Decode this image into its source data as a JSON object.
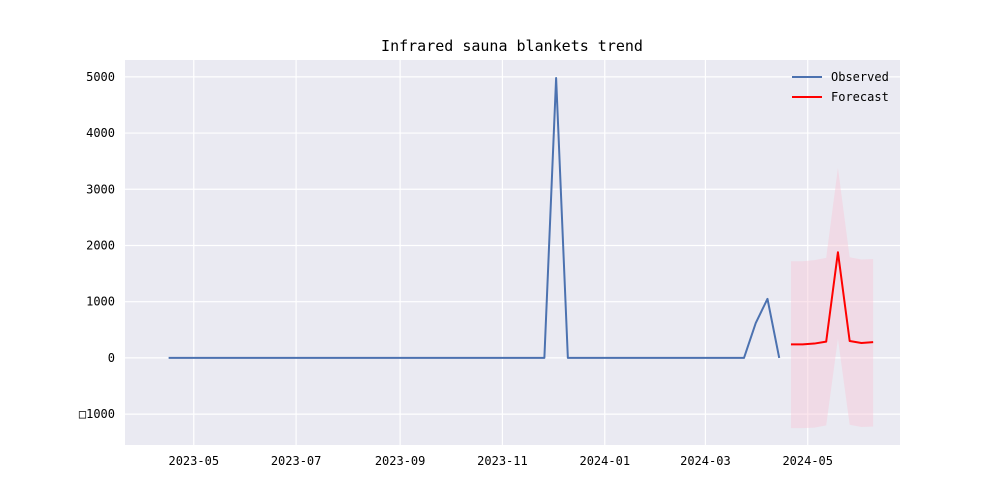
{
  "chart_data": {
    "type": "line",
    "title": "Infrared sauna blankets trend",
    "xlabel": "",
    "ylabel": "",
    "x_domain": [
      "2023-03-21",
      "2024-06-25"
    ],
    "ylim": [
      -1550,
      5300
    ],
    "grid": true,
    "legend_position": "top-right",
    "x_ticks": [
      {
        "date": "2023-05-01",
        "label": "2023-05"
      },
      {
        "date": "2023-07-01",
        "label": "2023-07"
      },
      {
        "date": "2023-09-01",
        "label": "2023-09"
      },
      {
        "date": "2023-11-01",
        "label": "2023-11"
      },
      {
        "date": "2024-01-01",
        "label": "2024-01"
      },
      {
        "date": "2024-03-01",
        "label": "2024-03"
      },
      {
        "date": "2024-05-01",
        "label": "2024-05"
      }
    ],
    "y_ticks": [
      {
        "value": -1000,
        "label": "□1000"
      },
      {
        "value": 0,
        "label": "0"
      },
      {
        "value": 1000,
        "label": "1000"
      },
      {
        "value": 2000,
        "label": "2000"
      },
      {
        "value": 3000,
        "label": "3000"
      },
      {
        "value": 4000,
        "label": "4000"
      },
      {
        "value": 5000,
        "label": "5000"
      }
    ],
    "series": [
      {
        "name": "Observed",
        "color": "#4c72b0",
        "points": [
          {
            "x": "2023-04-16",
            "y": 0
          },
          {
            "x": "2023-11-26",
            "y": 0
          },
          {
            "x": "2023-12-03",
            "y": 4980
          },
          {
            "x": "2023-12-10",
            "y": 0
          },
          {
            "x": "2024-03-24",
            "y": 0
          },
          {
            "x": "2024-03-31",
            "y": 620
          },
          {
            "x": "2024-04-07",
            "y": 1050
          },
          {
            "x": "2024-04-14",
            "y": 0
          }
        ]
      },
      {
        "name": "Forecast",
        "color": "#ff0000",
        "points": [
          {
            "x": "2024-04-21",
            "y": 240
          },
          {
            "x": "2024-04-28",
            "y": 240
          },
          {
            "x": "2024-05-05",
            "y": 255
          },
          {
            "x": "2024-05-12",
            "y": 290
          },
          {
            "x": "2024-05-19",
            "y": 1880
          },
          {
            "x": "2024-05-26",
            "y": 300
          },
          {
            "x": "2024-06-02",
            "y": 265
          },
          {
            "x": "2024-06-09",
            "y": 280
          }
        ]
      }
    ],
    "confidence_band": {
      "color": "#f8c8d8",
      "points": [
        {
          "x": "2024-04-21",
          "low": -1250,
          "high": 1720
        },
        {
          "x": "2024-04-28",
          "low": -1250,
          "high": 1720
        },
        {
          "x": "2024-05-05",
          "low": -1240,
          "high": 1740
        },
        {
          "x": "2024-05-12",
          "low": -1200,
          "high": 1780
        },
        {
          "x": "2024-05-19",
          "low": 340,
          "high": 3380
        },
        {
          "x": "2024-05-26",
          "low": -1190,
          "high": 1790
        },
        {
          "x": "2024-06-02",
          "low": -1230,
          "high": 1750
        },
        {
          "x": "2024-06-09",
          "low": -1220,
          "high": 1760
        }
      ]
    }
  },
  "colors": {
    "plot_background": "#eaeaf2",
    "grid": "#ffffff"
  }
}
